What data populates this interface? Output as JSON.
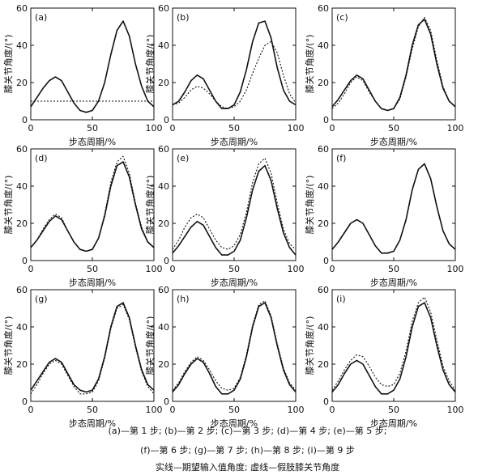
{
  "chart_data": [
    {
      "type": "line",
      "panel_label": "(a)",
      "x": [
        0,
        50,
        100
      ],
      "xlim": [
        0,
        100
      ],
      "ylim": [
        0,
        60
      ],
      "xticks": [
        0,
        50,
        100
      ],
      "yticks": [
        0,
        20,
        40,
        60
      ],
      "xlabel": "步态周期/%",
      "ylabel": "膝关节角度/(°)",
      "series": [
        {
          "style": "solid",
          "x": [
            0,
            5,
            10,
            15,
            20,
            25,
            30,
            35,
            40,
            45,
            50,
            55,
            60,
            65,
            70,
            75,
            80,
            85,
            90,
            95,
            100
          ],
          "y": [
            7,
            12,
            17,
            21,
            23,
            21,
            15,
            9,
            5,
            4,
            5,
            10,
            20,
            35,
            48,
            53,
            45,
            30,
            18,
            10,
            7
          ]
        },
        {
          "style": "dotted",
          "x": [
            0,
            100
          ],
          "y": [
            10,
            10
          ]
        }
      ]
    },
    {
      "type": "line",
      "panel_label": "(b)",
      "xlim": [
        0,
        100
      ],
      "ylim": [
        0,
        60
      ],
      "xticks": [
        0,
        50,
        100
      ],
      "yticks": [
        0,
        20,
        40,
        60
      ],
      "xlabel": "步态周期/%",
      "ylabel": "膝关节角度/(°)",
      "series": [
        {
          "style": "solid",
          "x": [
            0,
            5,
            10,
            15,
            20,
            25,
            30,
            35,
            40,
            45,
            50,
            55,
            60,
            65,
            70,
            75,
            80,
            85,
            90,
            95,
            100
          ],
          "y": [
            8,
            10,
            15,
            21,
            24,
            22,
            16,
            10,
            6,
            6,
            8,
            15,
            27,
            42,
            52,
            53,
            44,
            28,
            16,
            10,
            8
          ]
        },
        {
          "style": "dotted",
          "x": [
            0,
            5,
            10,
            15,
            20,
            25,
            30,
            35,
            40,
            45,
            50,
            55,
            60,
            65,
            70,
            75,
            80,
            85,
            90,
            95,
            100
          ],
          "y": [
            8,
            9,
            12,
            16,
            18,
            17,
            14,
            10,
            7,
            6,
            7,
            10,
            16,
            25,
            33,
            40,
            42,
            36,
            24,
            14,
            9
          ]
        }
      ]
    },
    {
      "type": "line",
      "panel_label": "(c)",
      "xlim": [
        0,
        100
      ],
      "ylim": [
        0,
        60
      ],
      "xticks": [
        0,
        50,
        100
      ],
      "yticks": [
        0,
        20,
        40,
        60
      ],
      "xlabel": "步态周期/%",
      "ylabel": "膝关节角度/(°)",
      "series": [
        {
          "style": "solid",
          "x": [
            0,
            5,
            10,
            15,
            20,
            25,
            30,
            35,
            40,
            45,
            50,
            55,
            60,
            65,
            70,
            75,
            80,
            85,
            90,
            95,
            100
          ],
          "y": [
            7,
            11,
            16,
            21,
            24,
            22,
            16,
            10,
            6,
            5,
            6,
            12,
            24,
            40,
            51,
            54,
            46,
            30,
            17,
            10,
            7
          ]
        },
        {
          "style": "dotted",
          "x": [
            0,
            5,
            10,
            15,
            20,
            25,
            30,
            35,
            40,
            45,
            50,
            55,
            60,
            65,
            70,
            75,
            80,
            85,
            90,
            95,
            100
          ],
          "y": [
            6,
            9,
            14,
            20,
            23,
            21,
            15,
            10,
            6,
            5,
            6,
            11,
            23,
            38,
            50,
            55,
            48,
            32,
            18,
            10,
            7
          ]
        }
      ]
    },
    {
      "type": "line",
      "panel_label": "(d)",
      "xlim": [
        0,
        100
      ],
      "ylim": [
        0,
        60
      ],
      "xticks": [
        0,
        50,
        100
      ],
      "yticks": [
        0,
        20,
        40,
        60
      ],
      "xlabel": "步态周期/%",
      "ylabel": "膝关节角度/(°)",
      "series": [
        {
          "style": "solid",
          "x": [
            0,
            5,
            10,
            15,
            20,
            25,
            30,
            35,
            40,
            45,
            50,
            55,
            60,
            65,
            70,
            75,
            80,
            85,
            90,
            95,
            100
          ],
          "y": [
            7,
            11,
            16,
            21,
            24,
            22,
            16,
            10,
            6,
            5,
            6,
            12,
            24,
            40,
            51,
            53,
            45,
            30,
            17,
            10,
            7
          ]
        },
        {
          "style": "dotted",
          "x": [
            0,
            5,
            10,
            15,
            20,
            25,
            30,
            35,
            40,
            45,
            50,
            55,
            60,
            65,
            70,
            75,
            80,
            85,
            90,
            95,
            100
          ],
          "y": [
            7,
            11,
            17,
            22,
            25,
            23,
            16,
            10,
            6,
            5,
            6,
            12,
            25,
            42,
            53,
            56,
            47,
            31,
            18,
            10,
            7
          ]
        }
      ]
    },
    {
      "type": "line",
      "panel_label": "(e)",
      "xlim": [
        0,
        100
      ],
      "ylim": [
        0,
        60
      ],
      "xticks": [
        0,
        50,
        100
      ],
      "yticks": [
        0,
        20,
        40,
        60
      ],
      "xlabel": "步态周期/%",
      "ylabel": "膝关节角度/(°)",
      "series": [
        {
          "style": "solid",
          "x": [
            0,
            5,
            10,
            15,
            20,
            25,
            30,
            35,
            40,
            45,
            50,
            55,
            60,
            65,
            70,
            75,
            80,
            85,
            90,
            95,
            100
          ],
          "y": [
            4,
            8,
            13,
            18,
            21,
            19,
            13,
            7,
            3,
            3,
            5,
            11,
            23,
            38,
            48,
            51,
            43,
            28,
            15,
            7,
            3
          ]
        },
        {
          "style": "dotted",
          "x": [
            0,
            5,
            10,
            15,
            20,
            25,
            30,
            35,
            40,
            45,
            50,
            55,
            60,
            65,
            70,
            75,
            80,
            85,
            90,
            95,
            100
          ],
          "y": [
            6,
            11,
            18,
            23,
            25,
            23,
            17,
            11,
            7,
            6,
            8,
            14,
            26,
            42,
            52,
            55,
            47,
            31,
            17,
            9,
            6
          ]
        }
      ]
    },
    {
      "type": "line",
      "panel_label": "(f)",
      "xlim": [
        0,
        100
      ],
      "ylim": [
        0,
        60
      ],
      "xticks": [
        0,
        50,
        100
      ],
      "yticks": [
        0,
        20,
        40,
        60
      ],
      "xlabel": "步态周期/%",
      "ylabel": "膝关节角度/(°)",
      "series": [
        {
          "style": "solid",
          "x": [
            0,
            5,
            10,
            15,
            20,
            25,
            30,
            35,
            40,
            45,
            50,
            55,
            60,
            65,
            70,
            75,
            80,
            85,
            90,
            95,
            100
          ],
          "y": [
            6,
            10,
            15,
            20,
            22,
            20,
            14,
            8,
            4,
            4,
            5,
            11,
            22,
            38,
            49,
            52,
            44,
            29,
            16,
            9,
            6
          ]
        },
        {
          "style": "dotted",
          "x": [
            0,
            5,
            10,
            15,
            20,
            25,
            30,
            35,
            40,
            45,
            50,
            55,
            60,
            65,
            70,
            75,
            80,
            85,
            90,
            95,
            100
          ],
          "y": [
            6,
            10,
            15,
            20,
            22,
            20,
            14,
            8,
            4,
            4,
            5,
            11,
            22,
            38,
            49,
            52,
            44,
            29,
            16,
            9,
            6
          ]
        }
      ]
    },
    {
      "type": "line",
      "panel_label": "(g)",
      "xlim": [
        0,
        100
      ],
      "ylim": [
        0,
        60
      ],
      "xticks": [
        0,
        50,
        100
      ],
      "yticks": [
        0,
        20,
        40,
        60
      ],
      "xlabel": "步态周期/%",
      "ylabel": "膝关节角度/(°)",
      "series": [
        {
          "style": "solid",
          "x": [
            0,
            5,
            10,
            15,
            20,
            25,
            30,
            35,
            40,
            45,
            50,
            55,
            60,
            65,
            70,
            75,
            80,
            85,
            90,
            95,
            100
          ],
          "y": [
            6,
            11,
            16,
            21,
            23,
            21,
            15,
            9,
            6,
            5,
            6,
            12,
            24,
            40,
            51,
            53,
            45,
            30,
            17,
            9,
            6
          ]
        },
        {
          "style": "dotted",
          "x": [
            0,
            5,
            10,
            15,
            20,
            25,
            30,
            35,
            40,
            45,
            50,
            55,
            60,
            65,
            70,
            75,
            80,
            85,
            90,
            95,
            100
          ],
          "y": [
            4,
            9,
            15,
            20,
            22,
            20,
            14,
            8,
            4,
            4,
            5,
            11,
            23,
            39,
            50,
            52,
            44,
            29,
            16,
            8,
            4
          ]
        }
      ]
    },
    {
      "type": "line",
      "panel_label": "(h)",
      "xlim": [
        0,
        100
      ],
      "ylim": [
        0,
        60
      ],
      "xticks": [
        0,
        50,
        100
      ],
      "yticks": [
        0,
        20,
        40,
        60
      ],
      "xlabel": "步态周期/%",
      "ylabel": "膝关节角度/(°)",
      "series": [
        {
          "style": "solid",
          "x": [
            0,
            5,
            10,
            15,
            20,
            25,
            30,
            35,
            40,
            45,
            50,
            55,
            60,
            65,
            70,
            75,
            80,
            85,
            90,
            95,
            100
          ],
          "y": [
            5,
            9,
            15,
            20,
            23,
            21,
            15,
            8,
            4,
            4,
            6,
            12,
            24,
            40,
            51,
            53,
            45,
            30,
            17,
            9,
            5
          ]
        },
        {
          "style": "dotted",
          "x": [
            0,
            5,
            10,
            15,
            20,
            25,
            30,
            35,
            40,
            45,
            50,
            55,
            60,
            65,
            70,
            75,
            80,
            85,
            90,
            95,
            100
          ],
          "y": [
            6,
            10,
            16,
            21,
            24,
            22,
            17,
            11,
            7,
            6,
            7,
            13,
            25,
            41,
            52,
            54,
            46,
            31,
            18,
            10,
            6
          ]
        }
      ]
    },
    {
      "type": "line",
      "panel_label": "(i)",
      "xlim": [
        0,
        100
      ],
      "ylim": [
        0,
        60
      ],
      "xticks": [
        0,
        50,
        100
      ],
      "yticks": [
        0,
        20,
        40,
        60
      ],
      "xlabel": "步态周期/%",
      "ylabel": "膝关节角度/(°)",
      "series": [
        {
          "style": "solid",
          "x": [
            0,
            5,
            10,
            15,
            20,
            25,
            30,
            35,
            40,
            45,
            50,
            55,
            60,
            65,
            70,
            75,
            80,
            85,
            90,
            95,
            100
          ],
          "y": [
            5,
            9,
            15,
            20,
            22,
            20,
            14,
            8,
            4,
            4,
            6,
            12,
            24,
            40,
            51,
            53,
            45,
            30,
            17,
            9,
            5
          ]
        },
        {
          "style": "dotted",
          "x": [
            0,
            5,
            10,
            15,
            20,
            25,
            30,
            35,
            40,
            45,
            50,
            55,
            60,
            65,
            70,
            75,
            80,
            85,
            90,
            95,
            100
          ],
          "y": [
            6,
            11,
            17,
            22,
            25,
            24,
            19,
            13,
            9,
            8,
            9,
            15,
            27,
            43,
            53,
            56,
            48,
            33,
            19,
            11,
            6
          ]
        }
      ]
    }
  ],
  "captions": {
    "line1": "(a)—第 1 步; (b)—第 2 步; (c)—第 3 步; (d)—第 4 步; (e)—第 5 步;",
    "line2": "(f)—第 6 步; (g)—第 7 步; (h)—第 8 步; (i)—第 9 步",
    "line3": "实线—期望输入值角度; 虚线—假肢膝关节角度"
  }
}
